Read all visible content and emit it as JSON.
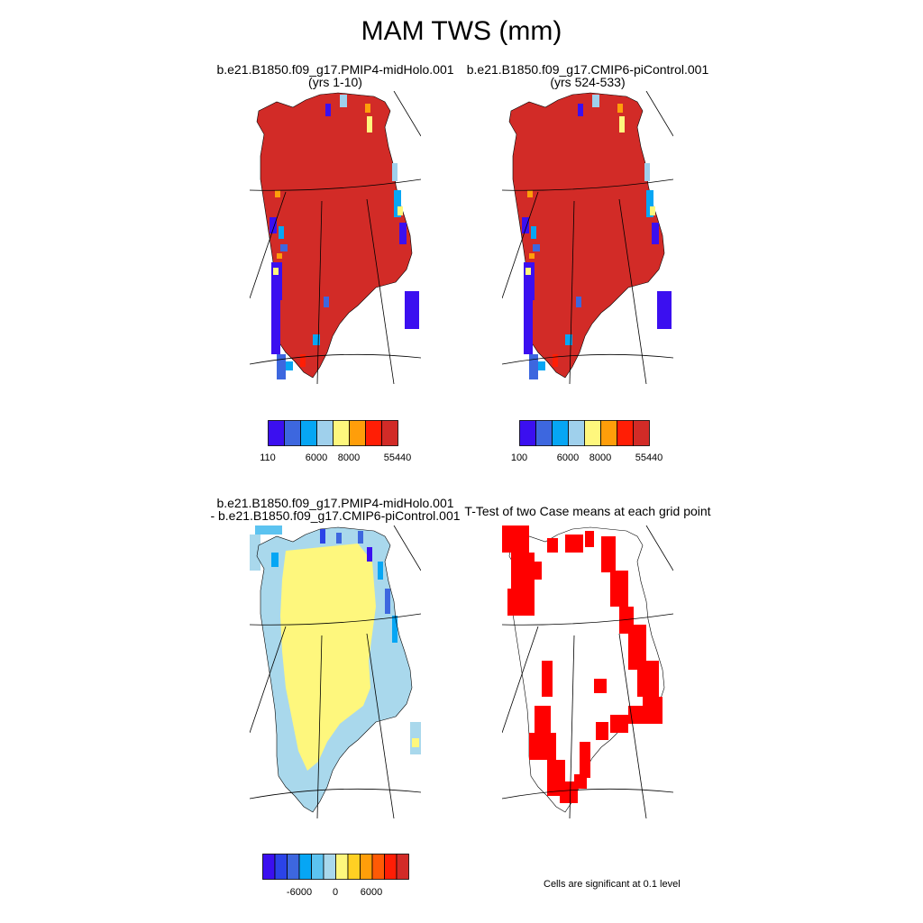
{
  "title": "MAM TWS (mm)",
  "panels": [
    {
      "id": "case1",
      "title_line1": "b.e21.B1850.f09_g17.PMIP4-midHolo.001",
      "title_line2": "(yrs 1-10)",
      "colorbar": {
        "colors": [
          "#3b0ff0",
          "#3d67df",
          "#06a6f4",
          "#9fd0ec",
          "#fef77d",
          "#ff9e0a",
          "#ff1e05",
          "#d22b27"
        ],
        "tick_labels": [
          "110",
          "6000",
          "8000",
          "55440"
        ]
      }
    },
    {
      "id": "case2",
      "title_line1": "b.e21.B1850.f09_g17.CMIP6-piControl.001",
      "title_line2": "(yrs 524-533)",
      "colorbar": {
        "colors": [
          "#3b0ff0",
          "#3d67df",
          "#06a6f4",
          "#9fd0ec",
          "#fef77d",
          "#ff9e0a",
          "#ff1e05",
          "#d22b27"
        ],
        "tick_labels": [
          "100",
          "6000",
          "8000",
          "55440"
        ]
      }
    },
    {
      "id": "diff",
      "title_line1": "b.e21.B1850.f09_g17.PMIP4-midHolo.001",
      "title_line2": "- b.e21.B1850.f09_g17.CMIP6-piControl.001",
      "colorbar": {
        "colors": [
          "#3b0ff0",
          "#2b43e8",
          "#3d67df",
          "#06a6f4",
          "#5cc3f0",
          "#a9d8ec",
          "#fef77d",
          "#ffd023",
          "#ff9e0a",
          "#ff5a05",
          "#ff1e05",
          "#d22b27"
        ],
        "tick_labels": [
          "-6000",
          "0",
          "6000"
        ]
      }
    },
    {
      "id": "ttest",
      "title_line1": "T-Test of two Case means at each grid point",
      "note": "Cells are significant at 0.1 level",
      "color": "#ff0000"
    }
  ]
}
